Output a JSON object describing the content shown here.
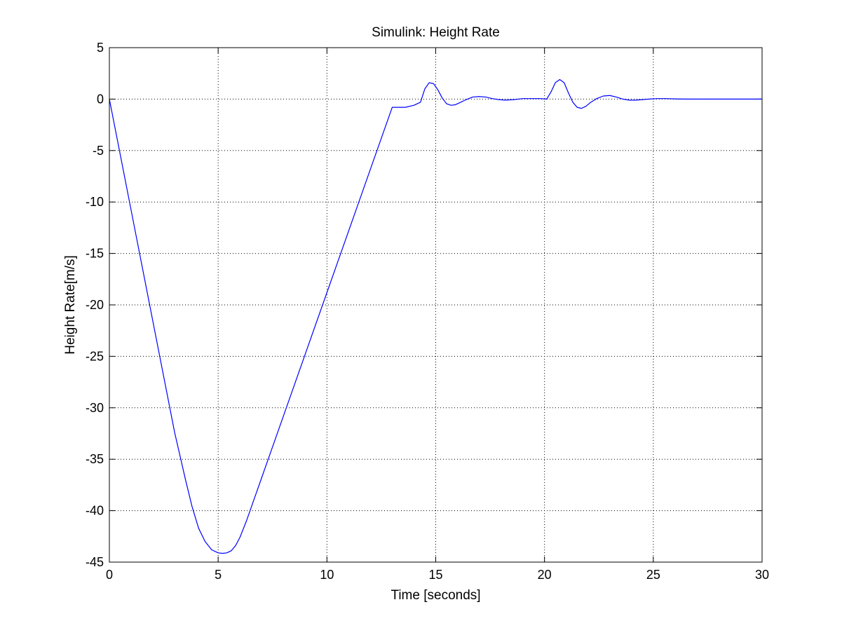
{
  "chart_data": {
    "type": "line",
    "title": "Simulink: Height Rate",
    "xlabel": "Time [seconds]",
    "ylabel": "Height Rate[m/s]",
    "xlim": [
      0,
      30
    ],
    "ylim": [
      -45,
      5
    ],
    "xticks": [
      0,
      5,
      10,
      15,
      20,
      25,
      30
    ],
    "yticks": [
      5,
      0,
      -5,
      -10,
      -15,
      -20,
      -25,
      -30,
      -35,
      -40,
      -45
    ],
    "xtick_labels": [
      "0",
      "5",
      "10",
      "15",
      "20",
      "25",
      "30"
    ],
    "ytick_labels": [
      "5",
      "0",
      "-5",
      "-10",
      "-15",
      "-20",
      "-25",
      "-30",
      "-35",
      "-40",
      "-45"
    ],
    "grid": true,
    "series": [
      {
        "color": "#0000ff",
        "x": [
          0,
          0.5,
          1,
          1.5,
          2,
          2.5,
          3,
          3.5,
          3.8,
          4.1,
          4.4,
          4.7,
          5.0,
          5.2,
          5.4,
          5.6,
          5.8,
          6.0,
          6.3,
          6.6,
          7,
          8,
          9,
          10,
          11,
          12,
          13,
          13.6,
          14.0,
          14.3,
          14.5,
          14.7,
          14.9,
          15.1,
          15.3,
          15.5,
          15.7,
          15.9,
          16.1,
          16.4,
          16.7,
          17.0,
          17.3,
          17.6,
          17.9,
          18.2,
          18.6,
          19.0,
          19.4,
          19.8,
          20.1,
          20.3,
          20.5,
          20.7,
          20.9,
          21.1,
          21.3,
          21.5,
          21.7,
          21.9,
          22.1,
          22.4,
          22.7,
          23.0,
          23.3,
          23.6,
          23.9,
          24.2,
          24.5,
          24.8,
          25.2,
          25.6,
          26.0,
          26.5,
          27,
          28,
          29,
          30
        ],
        "y": [
          0,
          -5.4,
          -10.8,
          -16.2,
          -21.6,
          -27.0,
          -32.4,
          -37.0,
          -39.6,
          -41.7,
          -43.0,
          -43.8,
          -44.1,
          -44.15,
          -44.1,
          -43.9,
          -43.4,
          -42.6,
          -41.0,
          -39.2,
          -36.8,
          -30.8,
          -24.8,
          -18.8,
          -12.8,
          -6.8,
          -0.8,
          -0.8,
          -0.6,
          -0.3,
          1.0,
          1.6,
          1.5,
          0.9,
          0.1,
          -0.45,
          -0.6,
          -0.55,
          -0.35,
          -0.05,
          0.2,
          0.25,
          0.2,
          0.05,
          -0.05,
          -0.1,
          -0.05,
          0.05,
          0.05,
          0.05,
          0.0,
          0.7,
          1.6,
          1.9,
          1.6,
          0.6,
          -0.3,
          -0.8,
          -0.9,
          -0.7,
          -0.35,
          0.05,
          0.3,
          0.35,
          0.2,
          0.0,
          -0.1,
          -0.1,
          -0.05,
          0.0,
          0.05,
          0.05,
          0.02,
          0.0,
          0.0,
          0.0,
          0.0,
          0.0
        ]
      }
    ]
  }
}
